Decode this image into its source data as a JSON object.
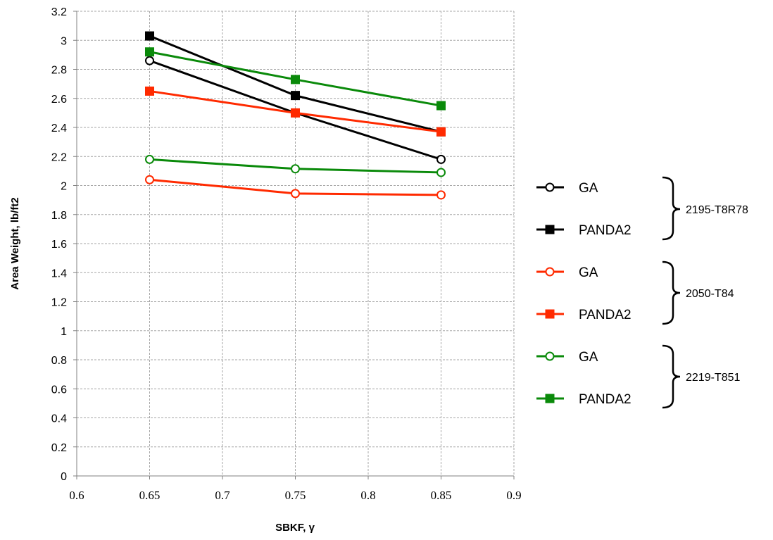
{
  "chart_data": {
    "type": "line",
    "xlabel": "SBKF, γ",
    "ylabel": "Area Weight, lb/ft2",
    "xlim": [
      0.6,
      0.9
    ],
    "ylim": [
      0,
      3.2
    ],
    "x_ticks": [
      "0.6",
      "0.65",
      "0.7",
      "0.75",
      "0.8",
      "0.85",
      "0.9"
    ],
    "y_ticks": [
      "0",
      "0.2",
      "0.4",
      "0.6",
      "0.8",
      "1",
      "1.2",
      "1.4",
      "1.6",
      "1.8",
      "2",
      "2.2",
      "2.4",
      "2.6",
      "2.8",
      "3",
      "3.2"
    ],
    "grid": true,
    "legend_position": "right",
    "x": [
      0.65,
      0.75,
      0.85
    ],
    "series": [
      {
        "name": "GA",
        "group": "2195-T8R78",
        "color": "#000000",
        "marker": "circle",
        "values": [
          2.86,
          2.5,
          2.18
        ]
      },
      {
        "name": "PANDA2",
        "group": "2195-T8R78",
        "color": "#000000",
        "marker": "square",
        "values": [
          3.03,
          2.62,
          2.37
        ]
      },
      {
        "name": "GA",
        "group": "2050-T84",
        "color": "#ff2a00",
        "marker": "circle",
        "values": [
          2.04,
          1.945,
          1.935
        ]
      },
      {
        "name": "PANDA2",
        "group": "2050-T84",
        "color": "#ff2a00",
        "marker": "square",
        "values": [
          2.65,
          2.5,
          2.37
        ]
      },
      {
        "name": "GA",
        "group": "2219-T851",
        "color": "#0a8a0a",
        "marker": "circle",
        "values": [
          2.18,
          2.115,
          2.09
        ]
      },
      {
        "name": "PANDA2",
        "group": "2219-T851",
        "color": "#0a8a0a",
        "marker": "square",
        "values": [
          2.92,
          2.73,
          2.55
        ]
      }
    ],
    "legend_groups": [
      "2195-T8R78",
      "2050-T84",
      "2219-T851"
    ]
  }
}
